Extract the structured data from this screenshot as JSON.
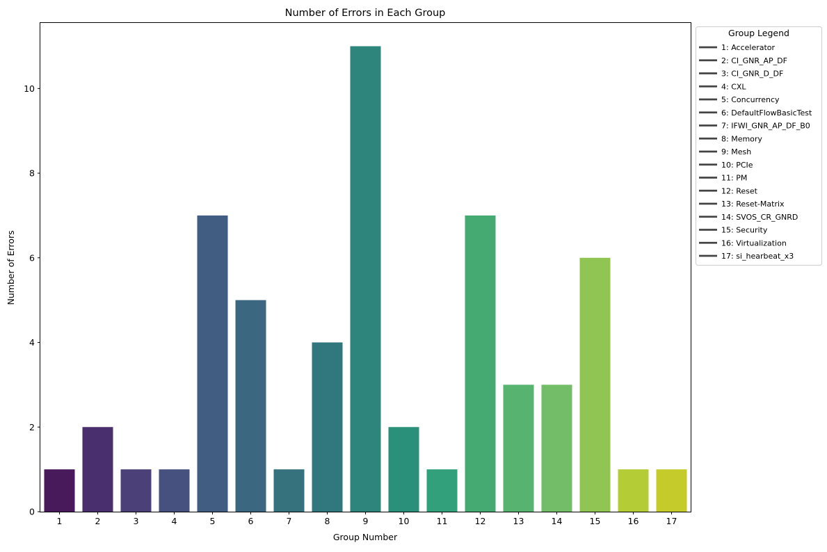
{
  "chart_data": {
    "type": "bar",
    "title": "Number of Errors in Each Group",
    "xlabel": "Group Number",
    "ylabel": "Number of Errors",
    "categories": [
      "1",
      "2",
      "3",
      "4",
      "5",
      "6",
      "7",
      "8",
      "9",
      "10",
      "11",
      "12",
      "13",
      "14",
      "15",
      "16",
      "17"
    ],
    "values": [
      1,
      2,
      1,
      1,
      7,
      5,
      1,
      4,
      11,
      2,
      1,
      7,
      3,
      3,
      6,
      1,
      1
    ],
    "colors": [
      "#481a5c",
      "#4a2f6e",
      "#4b4078",
      "#47517f",
      "#425d82",
      "#3b6880",
      "#35727e",
      "#30787d",
      "#2e857c",
      "#2b907a",
      "#32a07a",
      "#44aa72",
      "#57b370",
      "#73bd68",
      "#90c554",
      "#b4cc36",
      "#c6cb2c"
    ],
    "ylim": [
      0,
      11.55
    ],
    "yticks": [
      0,
      2,
      4,
      6,
      8,
      10
    ],
    "grid": false,
    "legend": {
      "title": "Group Legend",
      "placement": "outside-top-right",
      "entries": [
        "1: Accelerator",
        "2: CI_GNR_AP_DF",
        "3: CI_GNR_D_DF",
        "4: CXL",
        "5: Concurrency",
        "6: DefaultFlowBasicTest",
        "7: IFWI_GNR_AP_DF_B0",
        "8: Memory",
        "9: Mesh",
        "10: PCIe",
        "11: PM",
        "12: Reset",
        "13: Reset-Matrix",
        "14: SVOS_CR_GNRD",
        "15: Security",
        "16: Virtualization",
        "17: si_hearbeat_x3"
      ]
    }
  }
}
